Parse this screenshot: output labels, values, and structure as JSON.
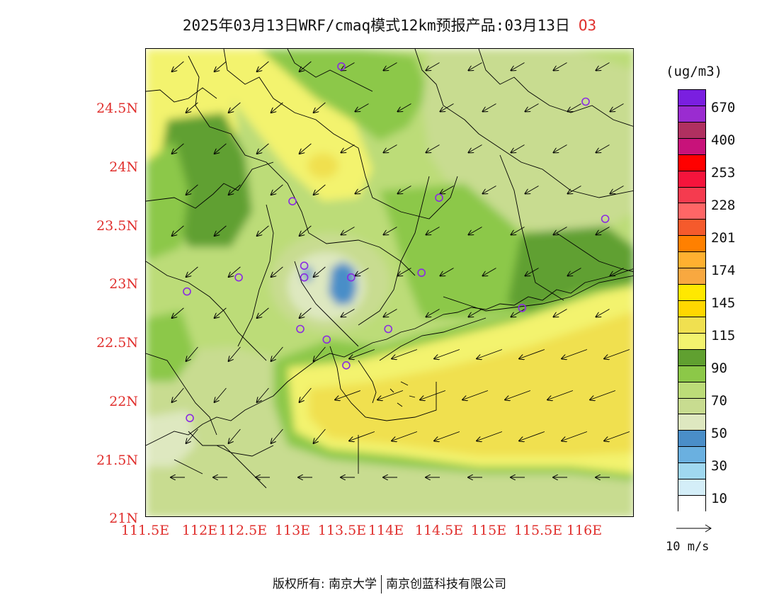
{
  "title": {
    "text": "2025年03月13日WRF/cmaq模式12km预报产品:03月13日",
    "species": "O3"
  },
  "colorbar": {
    "unit": "(ug/m3)",
    "colors": [
      "#7a1fe0",
      "#9a2cd0",
      "#b03060",
      "#c8127a",
      "#ff0000",
      "#f5143c",
      "#f53b4f",
      "#ff6666",
      "#f55a2c",
      "#ff8000",
      "#ffb030",
      "#f8a840",
      "#ffe800",
      "#ffd700",
      "#f0e050",
      "#f3f36e",
      "#60a030",
      "#8cc848",
      "#bcdc78",
      "#c8dc90",
      "#dee8c0",
      "#4a8ec8",
      "#6ab0e0",
      "#a0d8f0",
      "#d4eef8",
      "#ffffff"
    ],
    "labels": [
      "670",
      "400",
      "253",
      "228",
      "201",
      "174",
      "145",
      "115",
      "90",
      "70",
      "50",
      "30",
      "10"
    ]
  },
  "axes": {
    "lat_labels": [
      "24.5N",
      "24N",
      "23.5N",
      "23N",
      "22.5N",
      "22N",
      "21.5N",
      "21N"
    ],
    "lon_labels": [
      "111.5E",
      "112E",
      "112.5E",
      "113E",
      "113.5E",
      "114E",
      "114.5E",
      "115E",
      "115.5E",
      "116E"
    ]
  },
  "wind_reference": {
    "label": "10 m/s"
  },
  "stations": [
    {
      "lon": 113.5,
      "lat": 24.85
    },
    {
      "lon": 116.0,
      "lat": 24.55
    },
    {
      "lon": 113.0,
      "lat": 23.7
    },
    {
      "lon": 114.5,
      "lat": 23.73
    },
    {
      "lon": 116.2,
      "lat": 23.55
    },
    {
      "lon": 112.45,
      "lat": 23.05
    },
    {
      "lon": 111.92,
      "lat": 22.93
    },
    {
      "lon": 113.12,
      "lat": 23.15
    },
    {
      "lon": 113.12,
      "lat": 23.05
    },
    {
      "lon": 113.6,
      "lat": 23.05
    },
    {
      "lon": 114.32,
      "lat": 23.09
    },
    {
      "lon": 113.08,
      "lat": 22.61
    },
    {
      "lon": 113.35,
      "lat": 22.52
    },
    {
      "lon": 113.98,
      "lat": 22.61
    },
    {
      "lon": 113.55,
      "lat": 22.3
    },
    {
      "lon": 115.35,
      "lat": 22.79
    },
    {
      "lon": 111.95,
      "lat": 21.85
    }
  ],
  "copyright": {
    "left": "版权所有: 南京大学",
    "right": "南京创蓝科技有限公司"
  }
}
